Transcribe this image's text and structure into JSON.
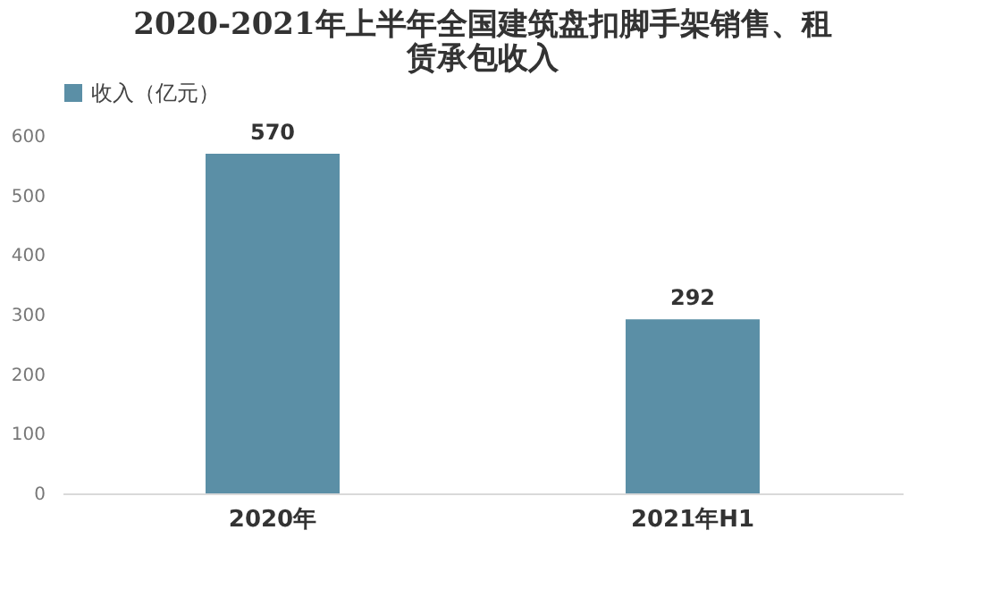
{
  "chart_data": {
    "type": "bar",
    "title": "2020-2021年上半年全国建筑盘扣脚手架销售、租赁承包收入",
    "categories": [
      "2020年",
      "2021年H1"
    ],
    "series": [
      {
        "name": "收入（亿元）",
        "color": "#5b8fa6",
        "values": [
          570,
          292
        ]
      }
    ],
    "ylim": [
      0,
      600
    ],
    "yticks": [
      0,
      100,
      200,
      300,
      400,
      500,
      600
    ],
    "grid": false,
    "legend": "top",
    "data_labels": true
  }
}
